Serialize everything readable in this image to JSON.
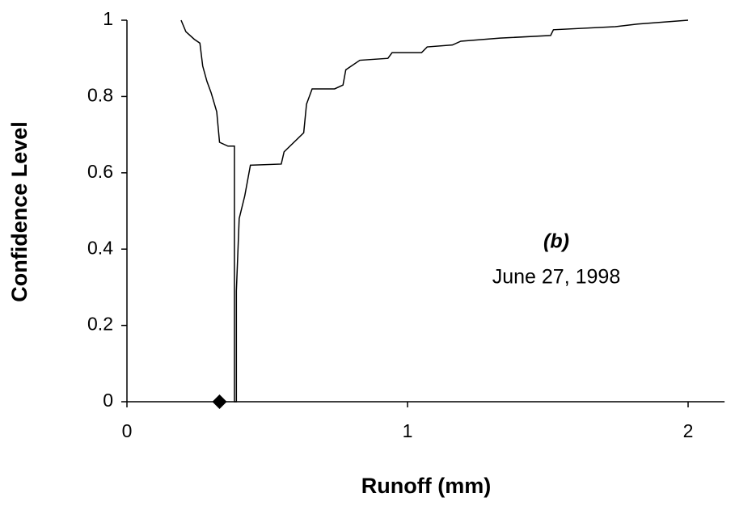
{
  "chart_data": {
    "type": "line",
    "x_label": "Runoff (mm)",
    "y_label": "Confidence Level",
    "annotations": [
      "(b)",
      "June 27, 1998"
    ],
    "xlim": [
      0,
      2.13
    ],
    "ylim": [
      0,
      1
    ],
    "xticks": [
      0,
      1,
      2
    ],
    "yticks": [
      0,
      0.2,
      0.4,
      0.6,
      0.8,
      1
    ],
    "series": [
      {
        "type": "line",
        "color": "#000000",
        "x": [
          0.193,
          0.21,
          0.24,
          0.26,
          0.27,
          0.285,
          0.3,
          0.32,
          0.33,
          0.36,
          0.383,
          0.383,
          0.39,
          0.39,
          0.4,
          0.42,
          0.44,
          0.55,
          0.56,
          0.63,
          0.64,
          0.66,
          0.74,
          0.77,
          0.78,
          0.83,
          0.93,
          0.945,
          1.05,
          1.07,
          1.16,
          1.19,
          1.33,
          1.51,
          1.52,
          1.74,
          1.82,
          2.0
        ],
        "values": [
          1,
          0.97,
          0.95,
          0.94,
          0.88,
          0.84,
          0.81,
          0.76,
          0.68,
          0.67,
          0.67,
          0,
          0,
          0.29,
          0.48,
          0.54,
          0.62,
          0.623,
          0.655,
          0.705,
          0.78,
          0.82,
          0.82,
          0.83,
          0.87,
          0.895,
          0.9,
          0.915,
          0.915,
          0.93,
          0.935,
          0.945,
          0.953,
          0.96,
          0.975,
          0.983,
          0.99,
          1
        ]
      },
      {
        "type": "scatter",
        "color": "#000000",
        "x": [
          0.33
        ],
        "values": [
          0
        ]
      }
    ]
  }
}
